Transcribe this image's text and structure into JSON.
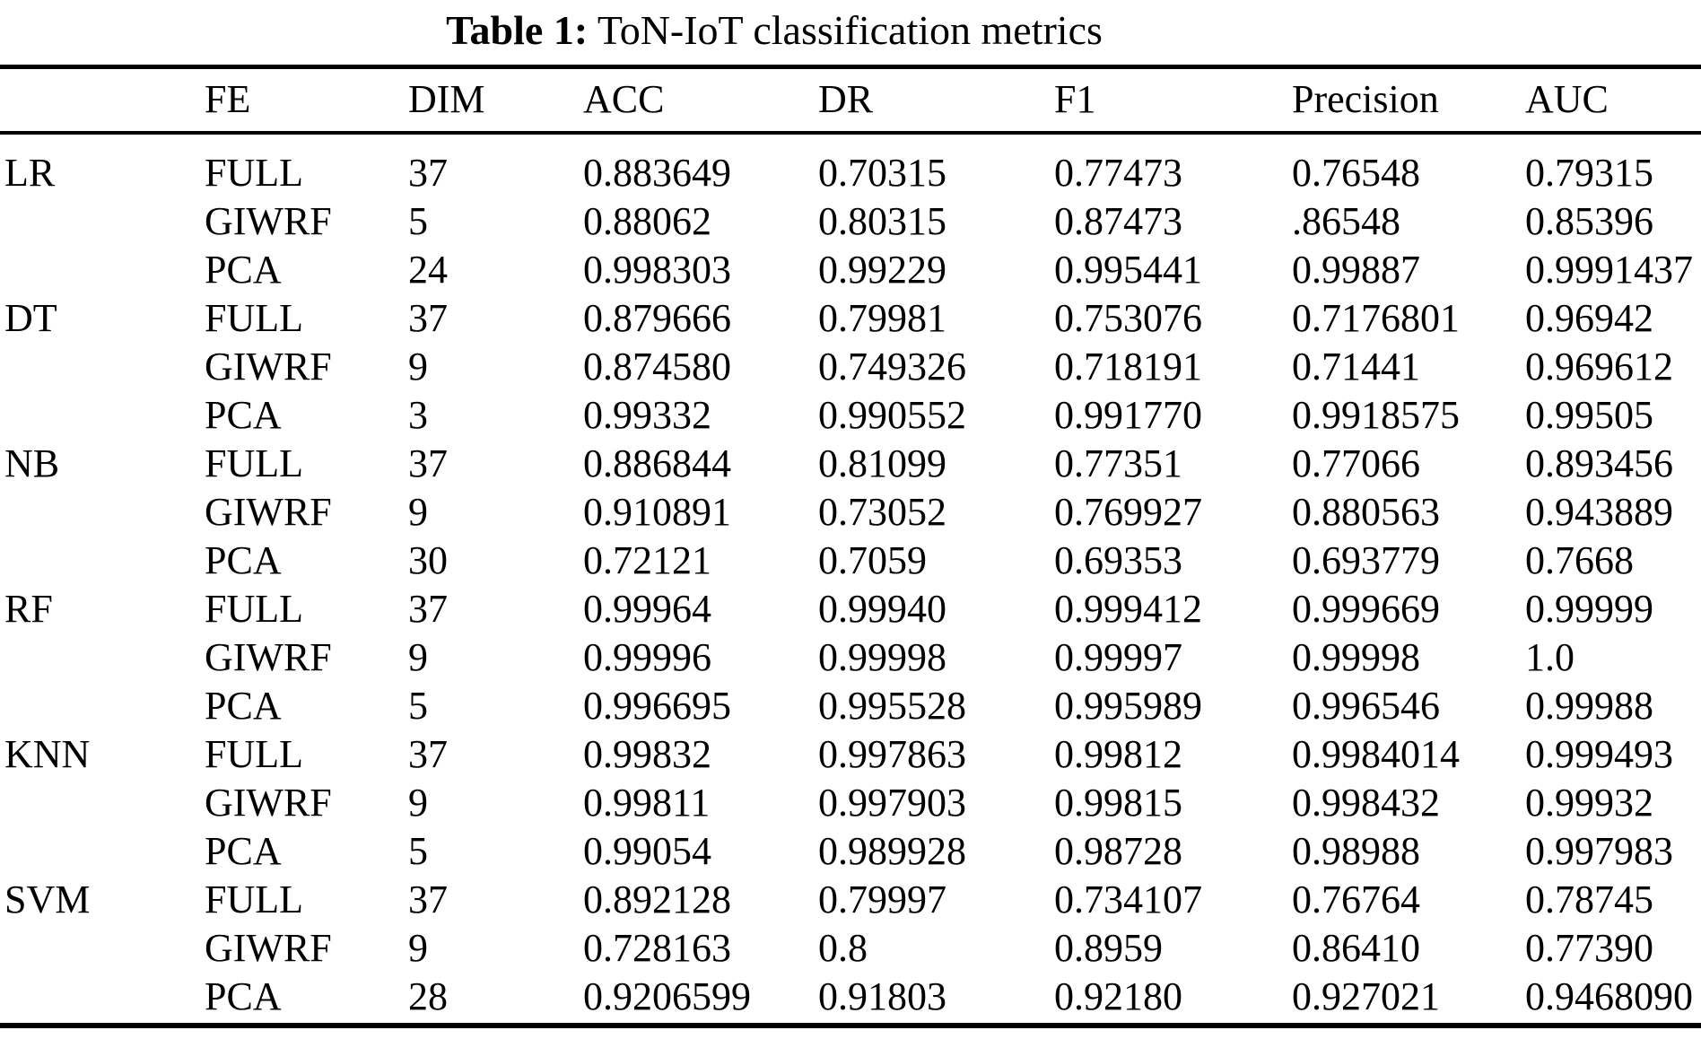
{
  "caption": {
    "label": "Table 1:",
    "title": "ToN-IoT classification metrics"
  },
  "table": {
    "headers": {
      "model": "",
      "fe": "FE",
      "dim": "DIM",
      "acc": "ACC",
      "dr": "DR",
      "f1": "F1",
      "precision": "Precision",
      "auc": "AUC"
    },
    "rows": [
      [
        "LR",
        "FULL",
        "37",
        "0.883649",
        "0.70315",
        "0.77473",
        "0.76548",
        "0.79315"
      ],
      [
        "",
        "GIWRF",
        "5",
        "0.88062",
        "0.80315",
        "0.87473",
        ".86548",
        "0.85396"
      ],
      [
        "",
        "PCA",
        "24",
        "0.998303",
        "0.99229",
        "0.995441",
        "0.99887",
        "0.9991437"
      ],
      [
        "DT",
        "FULL",
        "37",
        "0.879666",
        "0.79981",
        "0.753076",
        "0.7176801",
        "0.96942"
      ],
      [
        "",
        "GIWRF",
        "9",
        "0.874580",
        "0.749326",
        "0.718191",
        "0.71441",
        "0.969612"
      ],
      [
        "",
        "PCA",
        "3",
        "0.99332",
        "0.990552",
        "0.991770",
        "0.9918575",
        "0.99505"
      ],
      [
        "NB",
        "FULL",
        "37",
        "0.886844",
        "0.81099",
        "0.77351",
        "0.77066",
        "0.893456"
      ],
      [
        "",
        "GIWRF",
        "9",
        "0.910891",
        "0.73052",
        "0.769927",
        "0.880563",
        "0.943889"
      ],
      [
        "",
        "PCA",
        "30",
        "0.72121",
        "0.7059",
        "0.69353",
        "0.693779",
        "0.7668"
      ],
      [
        "RF",
        "FULL",
        "37",
        "0.99964",
        "0.99940",
        "0.999412",
        "0.999669",
        "0.99999"
      ],
      [
        "",
        "GIWRF",
        "9",
        "0.99996",
        "0.99998",
        "0.99997",
        "0.99998",
        "1.0"
      ],
      [
        "",
        "PCA",
        "5",
        "0.996695",
        "0.995528",
        "0.995989",
        "0.996546",
        "0.99988"
      ],
      [
        "KNN",
        "FULL",
        "37",
        "0.99832",
        "0.997863",
        "0.99812",
        "0.9984014",
        "0.999493"
      ],
      [
        "",
        "GIWRF",
        "9",
        "0.99811",
        "0.997903",
        "0.99815",
        "0.998432",
        "0.99932"
      ],
      [
        "",
        "PCA",
        "5",
        "0.99054",
        "0.989928",
        "0.98728",
        "0.98988",
        "0.997983"
      ],
      [
        "SVM",
        "FULL",
        "37",
        "0.892128",
        "0.79997",
        "0.734107",
        "0.76764",
        "0.78745"
      ],
      [
        "",
        "GIWRF",
        "9",
        "0.728163",
        "0.8",
        "0.8959",
        "0.86410",
        "0.77390"
      ],
      [
        "",
        "PCA",
        "28",
        "0.9206599",
        "0.91803",
        "0.92180",
        "0.927021",
        "0.9468090"
      ]
    ]
  }
}
